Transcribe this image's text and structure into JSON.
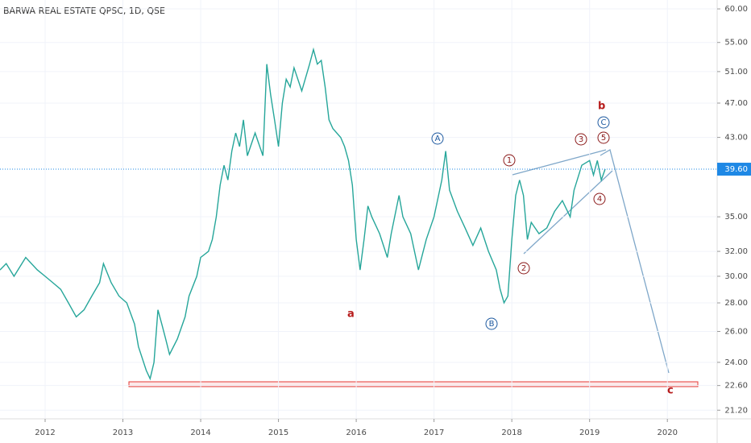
{
  "chart_data": {
    "type": "line",
    "title": "BARWA REAL ESTATE QPSC, 1D, QSE",
    "color": "#26a69a",
    "log_scale": true,
    "x": [
      2011.42,
      2011.5,
      2011.6,
      2011.75,
      2011.9,
      2012.0,
      2012.1,
      2012.2,
      2012.3,
      2012.4,
      2012.5,
      2012.6,
      2012.7,
      2012.75,
      2012.85,
      2012.95,
      2013.05,
      2013.15,
      2013.2,
      2013.3,
      2013.35,
      2013.4,
      2013.45,
      2013.5,
      2013.55,
      2013.6,
      2013.7,
      2013.8,
      2013.85,
      2013.95,
      2014.0,
      2014.1,
      2014.15,
      2014.2,
      2014.25,
      2014.3,
      2014.35,
      2014.4,
      2014.45,
      2014.5,
      2014.55,
      2014.6,
      2014.7,
      2014.8,
      2014.85,
      2014.9,
      2014.95,
      2015.0,
      2015.05,
      2015.1,
      2015.15,
      2015.2,
      2015.3,
      2015.4,
      2015.45,
      2015.5,
      2015.55,
      2015.6,
      2015.65,
      2015.7,
      2015.8,
      2015.85,
      2015.9,
      2015.95,
      2016.0,
      2016.05,
      2016.1,
      2016.15,
      2016.2,
      2016.3,
      2016.4,
      2016.45,
      2016.55,
      2016.6,
      2016.7,
      2016.8,
      2016.9,
      2017.0,
      2017.1,
      2017.15,
      2017.2,
      2017.3,
      2017.4,
      2017.5,
      2017.6,
      2017.7,
      2017.8,
      2017.85,
      2017.9,
      2017.95,
      2018.0,
      2018.05,
      2018.1,
      2018.15,
      2018.2,
      2018.25,
      2018.35,
      2018.45,
      2018.55,
      2018.65,
      2018.75,
      2018.8,
      2018.9,
      2019.0,
      2019.05,
      2019.1,
      2019.15,
      2019.2
    ],
    "values": [
      30.5,
      31.0,
      30.0,
      31.5,
      30.5,
      30.0,
      29.5,
      29.0,
      28.0,
      27.0,
      27.5,
      28.5,
      29.5,
      31.0,
      29.5,
      28.5,
      28.0,
      26.5,
      25.0,
      23.5,
      23.0,
      24.0,
      27.5,
      26.5,
      25.5,
      24.5,
      25.5,
      27.0,
      28.5,
      30.0,
      31.5,
      32.0,
      33.0,
      35.0,
      38.0,
      40.0,
      38.5,
      41.5,
      43.5,
      42.0,
      45.0,
      41.0,
      43.5,
      41.0,
      52.0,
      48.0,
      45.0,
      42.0,
      47.0,
      50.0,
      49.0,
      51.5,
      48.5,
      52.0,
      54.0,
      52.0,
      52.5,
      49.0,
      45.0,
      44.0,
      43.0,
      42.0,
      40.5,
      38.0,
      33.0,
      30.5,
      33.0,
      36.0,
      35.0,
      33.5,
      31.5,
      33.5,
      37.0,
      35.0,
      33.5,
      30.5,
      33.0,
      35.0,
      38.5,
      41.5,
      37.5,
      35.5,
      34.0,
      32.5,
      34.0,
      32.0,
      30.5,
      29.0,
      28.0,
      28.5,
      33.0,
      37.0,
      38.5,
      37.0,
      33.0,
      34.5,
      33.5,
      34.0,
      35.5,
      36.5,
      35.0,
      37.5,
      40.0,
      40.5,
      39.0,
      40.5,
      38.5,
      39.6
    ],
    "xlim": [
      2011.42,
      2020.64
    ],
    "xticks": [
      2012,
      2013,
      2014,
      2015,
      2016,
      2017,
      2018,
      2019,
      2020
    ],
    "ylim": [
      20.73,
      61.4
    ],
    "yticks": [
      {
        "value": 21.2,
        "label": "21.20"
      },
      {
        "value": 22.6,
        "label": "22.60"
      },
      {
        "value": 24,
        "label": "24.00"
      },
      {
        "value": 26,
        "label": "26.00"
      },
      {
        "value": 28,
        "label": "28.00"
      },
      {
        "value": 30,
        "label": "30.00"
      },
      {
        "value": 32,
        "label": "32.00"
      },
      {
        "value": 35,
        "label": "35.00"
      },
      {
        "value": 43,
        "label": "43.00"
      },
      {
        "value": 47,
        "label": "47.00"
      },
      {
        "value": 51,
        "label": "51.00"
      },
      {
        "value": 55,
        "label": "55.00"
      },
      {
        "value": 60,
        "label": "60.00"
      }
    ],
    "price_line": {
      "value": 39.6,
      "label": "39.60",
      "color": "#1e88e5"
    },
    "annotations": {
      "a": "a",
      "b": "b",
      "c": "c",
      "A": "A",
      "B": "B",
      "C": "C",
      "w1": "1",
      "w2": "2",
      "w3": "3",
      "w4": "4",
      "w5": "5"
    }
  }
}
